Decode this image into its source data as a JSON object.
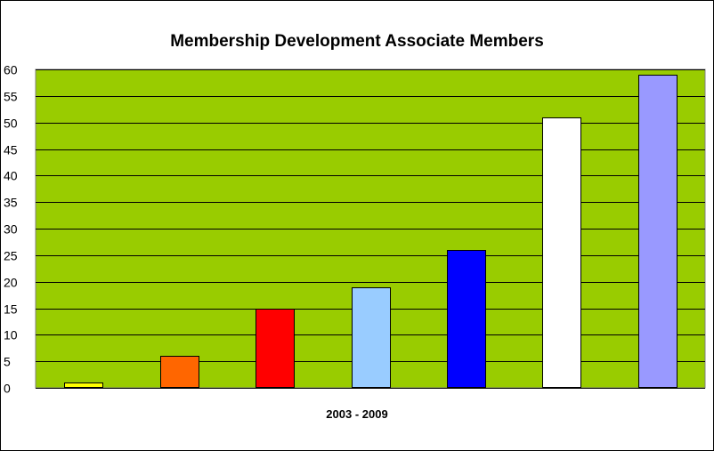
{
  "chart_data": {
    "type": "bar",
    "title": "Membership Development Associate Members",
    "xlabel": "2003 - 2009",
    "ylabel": "",
    "ylim": [
      0,
      60
    ],
    "y_ticks": [
      "0",
      "5",
      "10",
      "15",
      "20",
      "25",
      "30",
      "35",
      "40",
      "45",
      "50",
      "55",
      "60"
    ],
    "grid": true,
    "legend": "none",
    "plot_background": "#99CC00",
    "gridline_color": "#000000",
    "values": [
      1,
      6,
      15,
      19,
      26,
      51,
      59
    ],
    "bar_colors": [
      "#FFFF00",
      "#FF6600",
      "#FF0000",
      "#99CCFF",
      "#0000FF",
      "#FFFFFF",
      "#9999FF"
    ]
  }
}
